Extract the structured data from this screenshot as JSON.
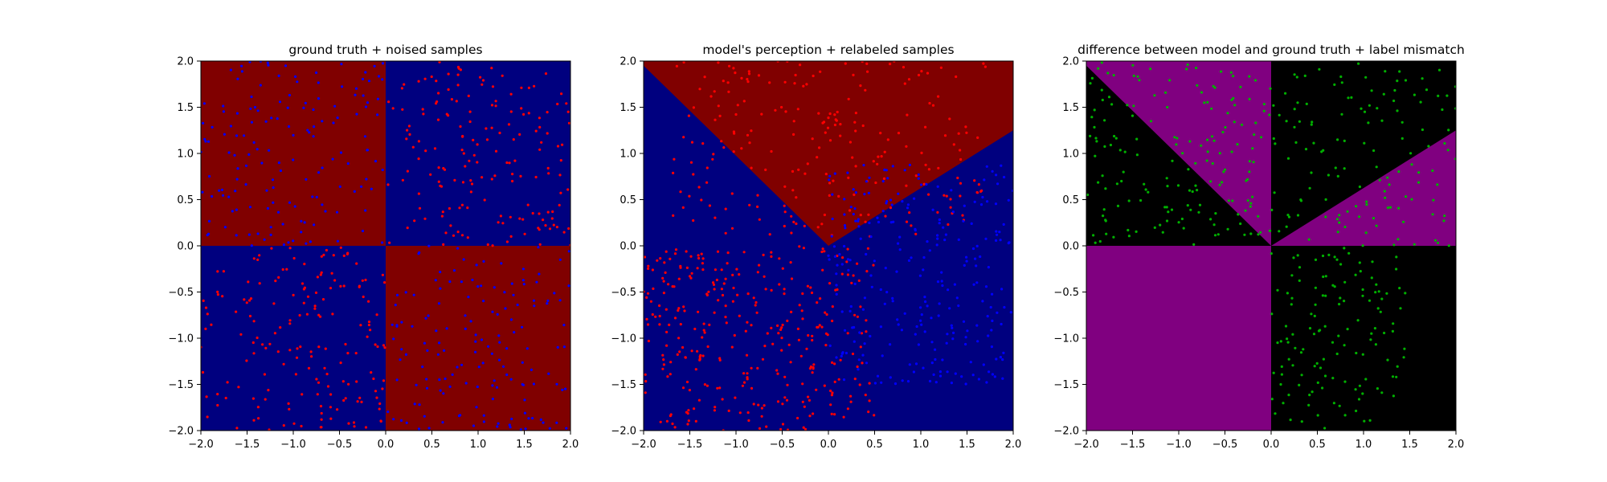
{
  "figure": {
    "background": "#ffffff"
  },
  "chart_data": [
    {
      "type": "scatter",
      "title": "ground truth + noised samples",
      "xlabel": "",
      "ylabel": "",
      "xlim": [
        -2.0,
        2.0
      ],
      "ylim": [
        -2.0,
        2.0
      ],
      "xticks": [
        "−2.0",
        "−1.5",
        "−1.0",
        "−0.5",
        "0.0",
        "0.5",
        "1.0",
        "1.5",
        "2.0"
      ],
      "yticks": [
        "−2.0",
        "−1.5",
        "−1.0",
        "−0.5",
        "0.0",
        "0.5",
        "1.0",
        "1.5",
        "2.0"
      ],
      "grid": false,
      "background_regions": [
        {
          "polygon": [
            [
              -2,
              0
            ],
            [
              0,
              0
            ],
            [
              0,
              2
            ],
            [
              -2,
              2
            ]
          ],
          "color": "#800000"
        },
        {
          "polygon": [
            [
              0,
              0
            ],
            [
              2,
              0
            ],
            [
              2,
              2
            ],
            [
              0,
              2
            ]
          ],
          "color": "#00007f"
        },
        {
          "polygon": [
            [
              -2,
              -2
            ],
            [
              0,
              -2
            ],
            [
              0,
              0
            ],
            [
              -2,
              0
            ]
          ],
          "color": "#00007f"
        },
        {
          "polygon": [
            [
              0,
              -2
            ],
            [
              2,
              -2
            ],
            [
              2,
              0
            ],
            [
              0,
              0
            ]
          ],
          "color": "#800000"
        }
      ],
      "series": [
        {
          "color": "#ff0000",
          "cluster": {
            "region": [
              [
                0,
                2
              ],
              [
                0,
                2
              ]
            ],
            "n": 170
          }
        },
        {
          "color": "#ff0000",
          "cluster": {
            "region": [
              [
                -2,
                0
              ],
              [
                -2,
                0
              ]
            ],
            "n": 170
          }
        },
        {
          "color": "#0000ff",
          "cluster": {
            "region": [
              [
                -2,
                0
              ],
              [
                0,
                2
              ]
            ],
            "n": 150
          }
        },
        {
          "color": "#0000ff",
          "cluster": {
            "region": [
              [
                0,
                2
              ],
              [
                -2,
                0
              ]
            ],
            "n": 150
          }
        }
      ]
    },
    {
      "type": "scatter",
      "title": "model's perception + relabeled samples",
      "xlabel": "",
      "ylabel": "",
      "xlim": [
        -2.0,
        2.0
      ],
      "ylim": [
        -2.0,
        2.0
      ],
      "xticks": [
        "−2.0",
        "−1.5",
        "−1.0",
        "−0.5",
        "0.0",
        "0.5",
        "1.0",
        "1.5",
        "2.0"
      ],
      "yticks": [
        "−2.0",
        "−1.5",
        "−1.0",
        "−0.5",
        "0.0",
        "0.5",
        "1.0",
        "1.5",
        "2.0"
      ],
      "grid": false,
      "background_regions": [
        {
          "polygon": [
            [
              -2,
              -2
            ],
            [
              2,
              -2
            ],
            [
              2,
              2
            ],
            [
              -2,
              2
            ]
          ],
          "color": "#00007f"
        },
        {
          "polygon": [
            [
              -2,
              1.95
            ],
            [
              0,
              0
            ],
            [
              2,
              1.25
            ],
            [
              2,
              2
            ],
            [
              -2,
              2
            ]
          ],
          "color": "#800000"
        }
      ],
      "series": [
        {
          "color": "#ff0000",
          "cluster": {
            "region": [
              [
                -1.7,
                1.7
              ],
              [
                0.1,
                2
              ]
            ],
            "n": 220
          }
        },
        {
          "color": "#ff0000",
          "cluster": {
            "region": [
              [
                -2,
                0.5
              ],
              [
                -2,
                0
              ]
            ],
            "n": 320
          }
        },
        {
          "color": "#0000ff",
          "cluster": {
            "region": [
              [
                0,
                2
              ],
              [
                -1.5,
                0.9
              ]
            ],
            "n": 260
          }
        }
      ]
    },
    {
      "type": "scatter",
      "title": "difference between model and ground truth + label mismatch",
      "xlabel": "",
      "ylabel": "",
      "xlim": [
        -2.0,
        2.0
      ],
      "ylim": [
        -2.0,
        2.0
      ],
      "xticks": [
        "−2.0",
        "−1.5",
        "−1.0",
        "−0.5",
        "0.0",
        "0.5",
        "1.0",
        "1.5",
        "2.0"
      ],
      "yticks": [
        "−2.0",
        "−1.5",
        "−1.0",
        "−0.5",
        "0.0",
        "0.5",
        "1.0",
        "1.5",
        "2.0"
      ],
      "grid": false,
      "background_regions": [
        {
          "polygon": [
            [
              -2,
              -2
            ],
            [
              2,
              -2
            ],
            [
              2,
              2
            ],
            [
              -2,
              2
            ]
          ],
          "color": "#000000"
        },
        {
          "polygon": [
            [
              -2,
              1.95
            ],
            [
              0,
              0
            ],
            [
              0,
              2
            ],
            [
              -2,
              2
            ]
          ],
          "color": "#800080"
        },
        {
          "polygon": [
            [
              0,
              0
            ],
            [
              2,
              1.25
            ],
            [
              2,
              0
            ]
          ],
          "color": "#800080"
        },
        {
          "polygon": [
            [
              -2,
              -2
            ],
            [
              0,
              -2
            ],
            [
              0,
              0
            ],
            [
              -2,
              0
            ]
          ],
          "color": "#800080"
        }
      ],
      "series": [
        {
          "color": "#00b000",
          "cluster": {
            "region": [
              [
                -2,
                0
              ],
              [
                0,
                2
              ]
            ],
            "n": 170
          }
        },
        {
          "color": "#00b000",
          "cluster": {
            "region": [
              [
                0,
                2
              ],
              [
                0,
                2
              ]
            ],
            "n": 130
          }
        },
        {
          "color": "#00b000",
          "cluster": {
            "region": [
              [
                0,
                1.5
              ],
              [
                -2,
                0
              ]
            ],
            "n": 130
          }
        }
      ]
    }
  ]
}
